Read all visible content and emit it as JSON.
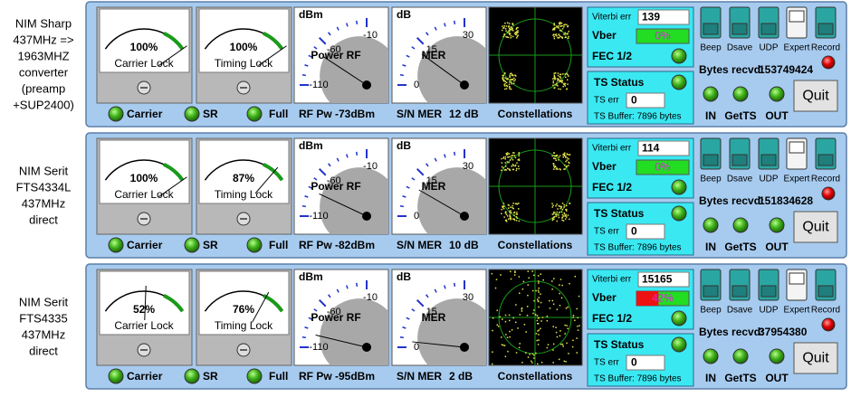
{
  "common": {
    "carrier_lock": "Carrier Lock",
    "timing_lock": "Timing Lock",
    "dbm_meter": {
      "unit": "dBm",
      "caption": "Power RF",
      "ticks": [
        -110,
        -60,
        -10
      ]
    },
    "db_meter": {
      "unit": "dB",
      "caption": "MER",
      "ticks": [
        0,
        15,
        30
      ]
    },
    "leds": [
      "Carrier",
      "SR",
      "Full"
    ],
    "rf_label": "RF Pw",
    "mer_label": "S/N MER",
    "constellations": "Constellations",
    "viterbi_err": "Viterbi err",
    "vber": "Vber",
    "fec": "FEC 1/2",
    "ts_status": "TS Status",
    "ts_err": "TS err",
    "ts_buffer": "TS Buffer: 7896 bytes",
    "switches": [
      "Beep",
      "Dsave",
      "UDP",
      "Expert",
      "Record"
    ],
    "bytes_recvd": "Bytes recvd:",
    "io_leds": [
      "IN",
      "GetTS",
      "OUT"
    ],
    "quit": "Quit"
  },
  "rows": [
    {
      "label": [
        "NIM Sharp",
        "437MHz =>",
        "1963MHZ",
        "converter",
        "(preamp",
        "+SUP2400)"
      ],
      "carrier": {
        "value": 100,
        "label": "100%"
      },
      "timing": {
        "value": 100,
        "label": "100%"
      },
      "rf": {
        "value": -73,
        "label": "-73dBm"
      },
      "mer": {
        "value": 12,
        "label": "12 dB"
      },
      "viterbi_err": 139,
      "vber": {
        "value": 0,
        "label": "0%"
      },
      "ts_err": 0,
      "bytes": 153749424
    },
    {
      "label": [
        "NIM Serit",
        "FTS4334L",
        "437MHz",
        "direct"
      ],
      "carrier": {
        "value": 100,
        "label": "100%"
      },
      "timing": {
        "value": 87,
        "label": "87%"
      },
      "rf": {
        "value": -82,
        "label": "-82dBm"
      },
      "mer": {
        "value": 10,
        "label": "10 dB"
      },
      "viterbi_err": 114,
      "vber": {
        "value": 0,
        "label": "0%"
      },
      "ts_err": 0,
      "bytes": 151834628
    },
    {
      "label": [
        "NIM Serit",
        "FTS4335",
        "437MHz",
        "direct"
      ],
      "carrier": {
        "value": 52,
        "label": "52%"
      },
      "timing": {
        "value": 76,
        "label": "76%"
      },
      "rf": {
        "value": -95,
        "label": "-95dBm"
      },
      "mer": {
        "value": 2,
        "label": "2 dB"
      },
      "viterbi_err": 15165,
      "vber": {
        "value": 42,
        "label": "42%"
      },
      "ts_err": 0,
      "bytes": 37954380
    }
  ]
}
